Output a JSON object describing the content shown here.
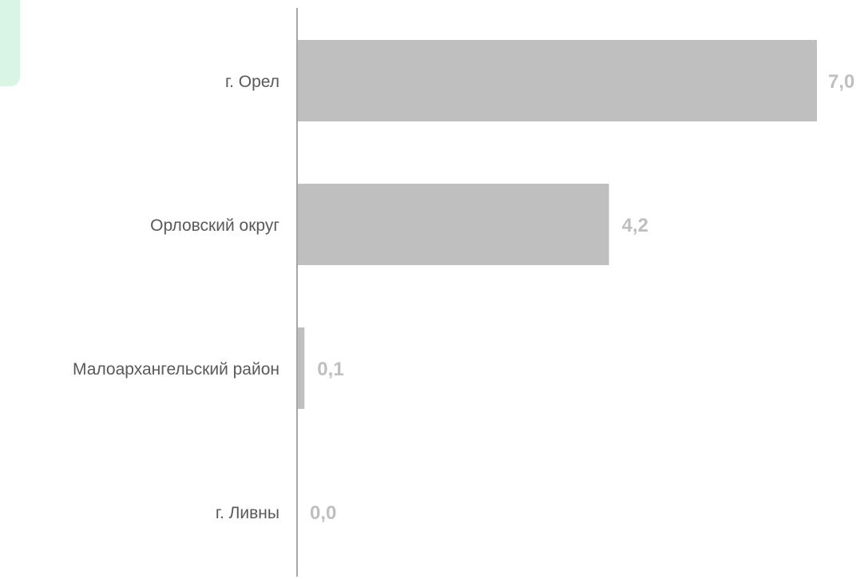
{
  "chart_data": {
    "type": "bar",
    "orientation": "horizontal",
    "categories": [
      "г. Орел",
      "Орловский округ",
      "Малоархангельский район",
      "г. Ливны"
    ],
    "values": [
      7.0,
      4.2,
      0.1,
      0.0
    ],
    "value_labels": [
      "7,0",
      "4,2",
      "0,1",
      "0,0"
    ],
    "xlim": [
      0,
      7.0
    ],
    "grid": false,
    "colors": {
      "bar": "#bfbfbf",
      "axis": "#a6a6a6",
      "category_text": "#595959",
      "value_text": "#bfbfbf",
      "corner_accent": "#d9f5e6"
    }
  }
}
